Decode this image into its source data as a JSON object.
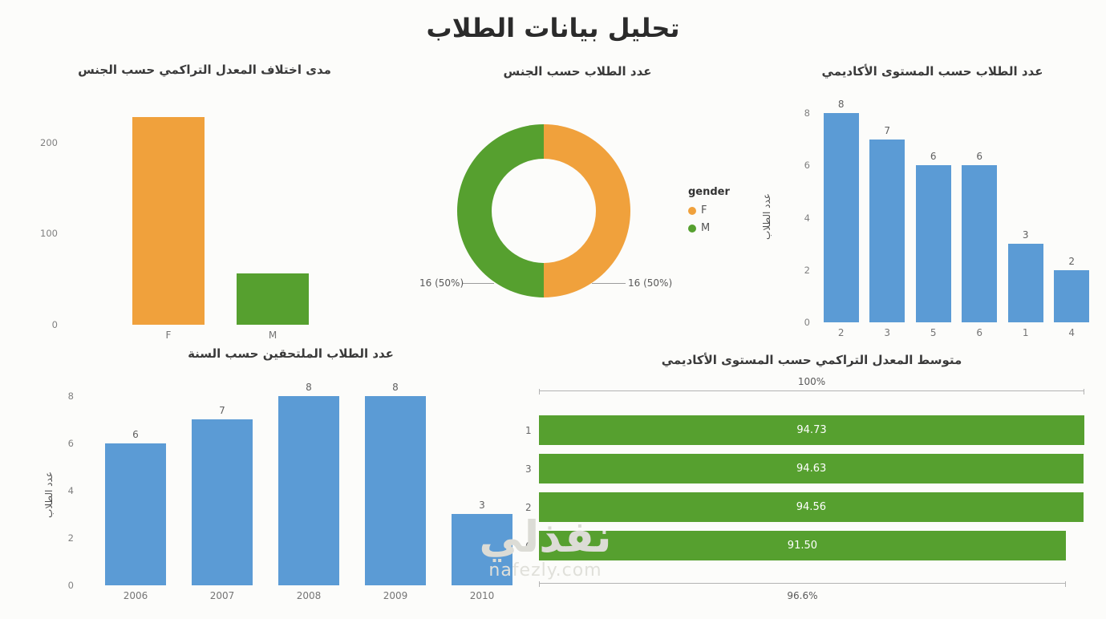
{
  "page": {
    "title": "تحليل بيانات الطلاب",
    "watermark": {
      "name": "نفذلي",
      "domain": "nafezly.com"
    }
  },
  "colors": {
    "orange": "#F0A13C",
    "green": "#56A02F",
    "blue": "#5B9BD5",
    "axis_text": "#757575",
    "title_text": "#2B2B2B"
  },
  "chart_data": [
    {
      "id": "gpa-range-by-gender",
      "type": "bar",
      "title": "مدى اختلاف المعدل التراكمي حسب الجنس",
      "categories": [
        "F",
        "M"
      ],
      "values": [
        228,
        56
      ],
      "bar_colors": [
        "#F0A13C",
        "#56A02F"
      ],
      "ylim": [
        0,
        240
      ],
      "yticks": [
        0,
        100,
        200
      ],
      "show_labels": false,
      "grid": false,
      "legend": "none"
    },
    {
      "id": "students-by-gender",
      "type": "donut",
      "title": "عدد الطلاب حسب الجنس",
      "legend_title": "gender",
      "legend_position": "right",
      "slices": [
        {
          "label": "F",
          "value": 16,
          "pct": 50,
          "callout": "16 (50%)",
          "color": "#F0A13C"
        },
        {
          "label": "M",
          "value": 16,
          "pct": 50,
          "callout": "16 (50%)",
          "color": "#56A02F"
        }
      ]
    },
    {
      "id": "students-by-academic-level",
      "type": "bar",
      "title": "عدد الطلاب حسب المستوى الأكاديمي",
      "ylabel": "عدد الطلاب",
      "categories": [
        "2",
        "3",
        "5",
        "6",
        "1",
        "4"
      ],
      "values": [
        8,
        7,
        6,
        6,
        3,
        2
      ],
      "color": "#5B9BD5",
      "ylim": [
        0,
        8.4
      ],
      "yticks": [
        0,
        2,
        4,
        6,
        8
      ],
      "show_labels": true,
      "grid": false,
      "legend": "none"
    },
    {
      "id": "enrolled-students-by-year",
      "type": "bar",
      "title": "عدد الطلاب الملتحقين حسب السنة",
      "ylabel": "عدد الطلاب",
      "categories": [
        "2006",
        "2007",
        "2008",
        "2009",
        "2010"
      ],
      "values": [
        6,
        7,
        8,
        8,
        3
      ],
      "color": "#5B9BD5",
      "ylim": [
        0,
        8.4
      ],
      "yticks": [
        0,
        2,
        4,
        6,
        8
      ],
      "show_labels": true,
      "grid": false,
      "legend": "none"
    },
    {
      "id": "avg-gpa-by-academic-level",
      "type": "hbar",
      "title": "متوسط المعدل التراكمي حسب المستوى الأكاديمي",
      "categories": [
        "1",
        "3",
        "2",
        "6"
      ],
      "values": [
        94.73,
        94.63,
        94.56,
        91.5
      ],
      "value_labels": [
        "94.73",
        "94.63",
        "94.56",
        "91.50"
      ],
      "color": "#56A02F",
      "top_ruler_label": "100%",
      "bottom_ruler_label": "96.6%",
      "bottom_ruler_pct": 96.6
    }
  ]
}
